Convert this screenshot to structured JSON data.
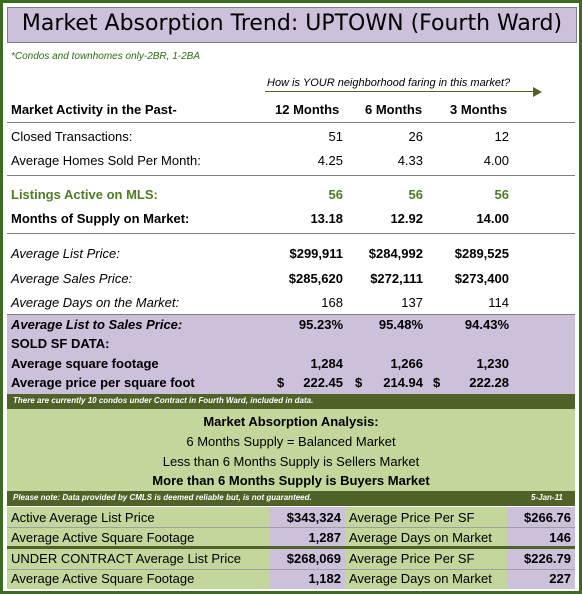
{
  "title": "Market Absorption Trend: UPTOWN (Fourth Ward)",
  "subtitle_note": "*Condos and townhomes only-2BR, 1-2BA",
  "question": "How is YOUR neighborhood faring in this market?",
  "header": {
    "label": "Market Activity in the Past-",
    "col1": "12 Months",
    "col2": "6 Months",
    "col3": "3 Months"
  },
  "activity_rows": [
    {
      "label": "Closed Transactions:",
      "v1": "51",
      "v2": "26",
      "v3": "12"
    },
    {
      "label": "Average Homes Sold Per Month:",
      "v1": "4.25",
      "v2": "4.33",
      "v3": "4.00"
    }
  ],
  "listings_row": {
    "label": "Listings  Active on MLS:",
    "v1": "56",
    "v2": "56",
    "v3": "56"
  },
  "supply_row": {
    "label": "Months of Supply on Market:",
    "v1": "13.18",
    "v2": "12.92",
    "v3": "14.00"
  },
  "price_rows": [
    {
      "label": "Average List Price:",
      "v1": "$299,911",
      "v2": "$284,992",
      "v3": "$289,525"
    },
    {
      "label": "Average Sales Price:",
      "v1": "$285,620",
      "v2": "$272,111",
      "v3": "$273,400"
    },
    {
      "label": "Average Days on the Market:",
      "v1": "168",
      "v2": "137",
      "v3": "114"
    }
  ],
  "list_to_sales": {
    "label": "Average List to Sales Price:",
    "v1": "95.23%",
    "v2": "95.48%",
    "v3": "94.43%"
  },
  "sold_sf": {
    "heading": "SOLD SF DATA:",
    "footage": {
      "label": "Average square footage",
      "v1": "1,284",
      "v2": "1,266",
      "v3": "1,230"
    },
    "ppsf": {
      "label": "Average price per square foot",
      "c1": "$",
      "v1": "222.45",
      "c2": "$",
      "v2": "214.94",
      "c3": "$",
      "v3": "222.28"
    }
  },
  "contract_note": "There are currently 10 condos under Contract in Fourth Ward, included in data.",
  "analysis": {
    "heading": "Market Absorption Analysis:",
    "line1": "6 Months Supply = Balanced Market",
    "line2": "Less than 6 Months Supply is Sellers Market",
    "line3": "More than 6 Months Supply is Buyers Market"
  },
  "disclaimer": "Please note:  Data provided by CMLS is deemed reliable but, is not guaranteed.",
  "date": "5-Jan-11",
  "active_table": [
    {
      "label": "Active Average List Price",
      "value": "$343,324",
      "label2": "Average Price Per SF",
      "value2": "$266.76"
    },
    {
      "label": "Average Active Square Footage",
      "value": "1,287",
      "label2": "Average Days on Market",
      "value2": "146"
    }
  ],
  "contract_table": [
    {
      "label": "UNDER CONTRACT Average List Price",
      "value": "$268,069",
      "label2": "Average Price Per SF",
      "value2": "$226.79"
    },
    {
      "label": "Average Active Square Footage",
      "value": "1,182",
      "label2": "Average Days on Market",
      "value2": "227"
    }
  ]
}
